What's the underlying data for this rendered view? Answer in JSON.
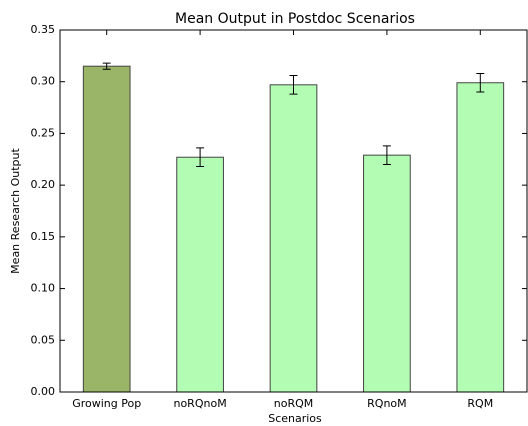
{
  "chart_data": {
    "type": "bar",
    "title": "Mean Output in Postdoc Scenarios",
    "xlabel": "Scenarios",
    "ylabel": "Mean Research Output",
    "categories": [
      "Growing Pop",
      "noRQnoM",
      "noRQM",
      "RQnoM",
      "RQM"
    ],
    "values": [
      0.315,
      0.227,
      0.297,
      0.229,
      0.299
    ],
    "errors": [
      0.003,
      0.009,
      0.009,
      0.009,
      0.009
    ],
    "colors": [
      "#9ab567",
      "#b3fcb3",
      "#b3fcb3",
      "#b3fcb3",
      "#b3fcb3"
    ],
    "ylim": [
      0,
      0.35
    ],
    "yticks": [
      {
        "value": 0,
        "label": "0.00"
      },
      {
        "value": 0.05,
        "label": "0.05"
      },
      {
        "value": 0.1,
        "label": "0.10"
      },
      {
        "value": 0.15,
        "label": "0.15"
      },
      {
        "value": 0.2,
        "label": "0.20"
      },
      {
        "value": 0.25,
        "label": "0.25"
      },
      {
        "value": 0.3,
        "label": "0.30"
      },
      {
        "value": 0.35,
        "label": "0.35"
      }
    ]
  }
}
